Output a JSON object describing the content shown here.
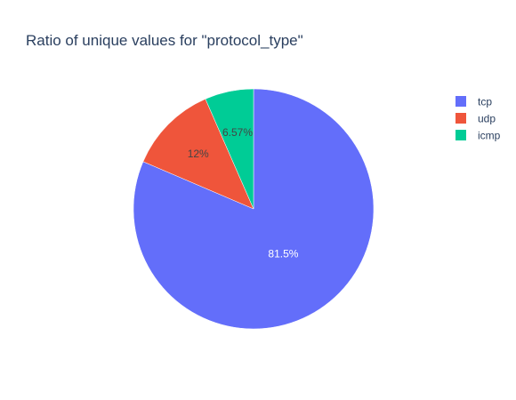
{
  "chart_data": {
    "type": "pie",
    "title": "Ratio of unique values for \"protocol_type\"",
    "slices": [
      {
        "label": "tcp",
        "value": 81.5,
        "text": "81.5%",
        "color": "#636efa",
        "text_color": "#ffffff"
      },
      {
        "label": "udp",
        "value": 12.0,
        "text": "12%",
        "color": "#ef553b",
        "text_color": "#444444"
      },
      {
        "label": "icmp",
        "value": 6.57,
        "text": "6.57%",
        "color": "#00cc96",
        "text_color": "#444444"
      }
    ],
    "direction": "clockwise",
    "start": "top",
    "legend_position": "top-right"
  }
}
